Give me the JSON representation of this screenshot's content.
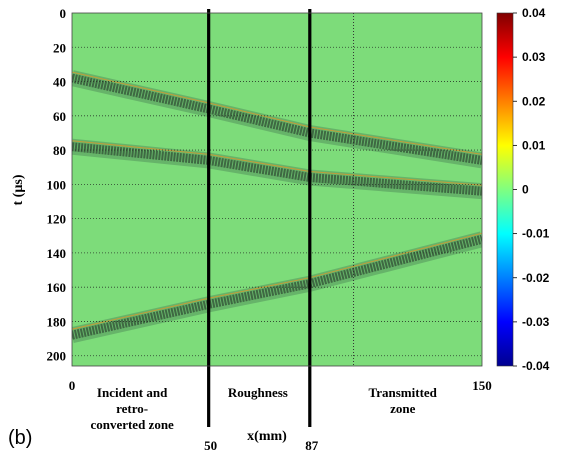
{
  "chart_data": {
    "type": "heatmap",
    "title": "",
    "xlabel": "x(mm)",
    "ylabel": "t (µs)",
    "xlim": [
      0,
      150
    ],
    "ylim": [
      206,
      0
    ],
    "x_ticks": [
      {
        "value": 0,
        "label": "0"
      },
      {
        "value": 50,
        "label": "50"
      },
      {
        "value": 87,
        "label": "87"
      },
      {
        "value": 150,
        "label": "150"
      }
    ],
    "y_ticks": [
      0,
      20,
      40,
      60,
      80,
      100,
      120,
      140,
      160,
      180,
      200
    ],
    "colorbar": {
      "range": [
        -0.04,
        0.04
      ],
      "ticks": [
        "0.04",
        "0.03",
        "0.02",
        "0.01",
        "0",
        "-0.01",
        "-0.02",
        "-0.03",
        "-0.04"
      ],
      "colors": [
        "#00008f",
        "#0000ff",
        "#0080ff",
        "#00ffff",
        "#80ff80",
        "#ffff00",
        "#ff8000",
        "#ff0000",
        "#800000"
      ]
    },
    "boundaries_x": [
      50,
      87
    ],
    "dotted_gridline_x": 103,
    "background_color": "#7ddc7a",
    "zones": [
      {
        "lines": [
          "Incident and",
          "retro-",
          "converted zone"
        ],
        "x_center": 22
      },
      {
        "lines": [
          "Roughness"
        ],
        "x_center": 68
      },
      {
        "lines": [
          "Transmitted",
          "zone"
        ],
        "x_center": 121
      }
    ],
    "wave_bands": [
      {
        "name": "",
        "points": [
          [
            0,
            38
          ],
          [
            50,
            56
          ],
          [
            87,
            70
          ],
          [
            150,
            86
          ]
        ]
      },
      {
        "name": "",
        "points": [
          [
            0,
            78
          ],
          [
            50,
            86
          ],
          [
            87,
            96
          ],
          [
            150,
            104
          ]
        ]
      },
      {
        "name": "",
        "points": [
          [
            0,
            188
          ],
          [
            50,
            170
          ],
          [
            87,
            158
          ],
          [
            150,
            132
          ]
        ]
      }
    ],
    "panel_label": "(b)"
  }
}
